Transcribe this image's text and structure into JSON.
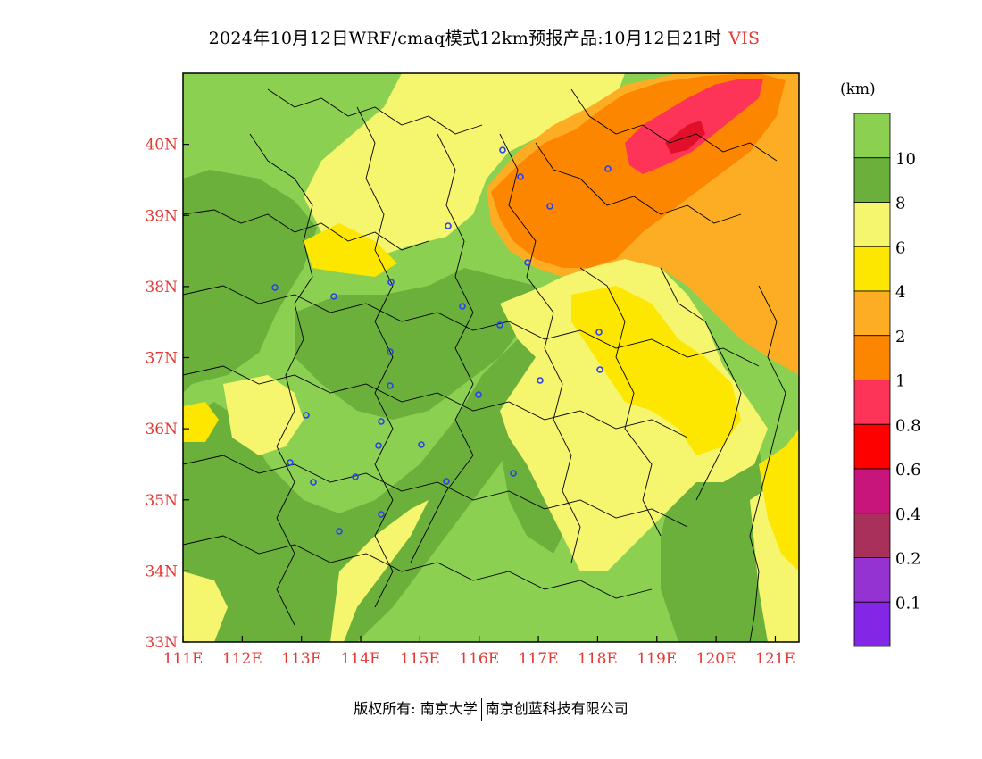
{
  "title": {
    "main": "2024年10月12日WRF/cmaq模式12km预报产品:10月12日21时",
    "variable": "VIS"
  },
  "colorbar": {
    "unit": "(km)",
    "levels": [
      {
        "label": "",
        "color": "#8cd052"
      },
      {
        "label": "10",
        "color": "#6cb03c"
      },
      {
        "label": "8",
        "color": "#f5f56e"
      },
      {
        "label": "6",
        "color": "#fde700"
      },
      {
        "label": "4",
        "color": "#fdad24"
      },
      {
        "label": "2",
        "color": "#fd8600"
      },
      {
        "label": "1",
        "color": "#fd3358"
      },
      {
        "label": "0.8",
        "color": "#fd0000"
      },
      {
        "label": "0.6",
        "color": "#c8157c"
      },
      {
        "label": "0.4",
        "color": "#a8305a"
      },
      {
        "label": "0.2",
        "color": "#9433d2"
      },
      {
        "label": "0.1",
        "color": "#8326e6"
      }
    ]
  },
  "axes": {
    "lon_ticks": [
      "111E",
      "112E",
      "113E",
      "114E",
      "115E",
      "116E",
      "117E",
      "118E",
      "119E",
      "120E",
      "121E"
    ],
    "lat_ticks": [
      "33N",
      "34N",
      "35N",
      "36N",
      "37N",
      "38N",
      "39N",
      "40N"
    ],
    "lon_range": [
      111,
      121.4
    ],
    "lat_range": [
      33,
      41
    ]
  },
  "footer": {
    "left": "版权所有: 南京大学",
    "right": "南京创蓝科技有限公司"
  }
}
